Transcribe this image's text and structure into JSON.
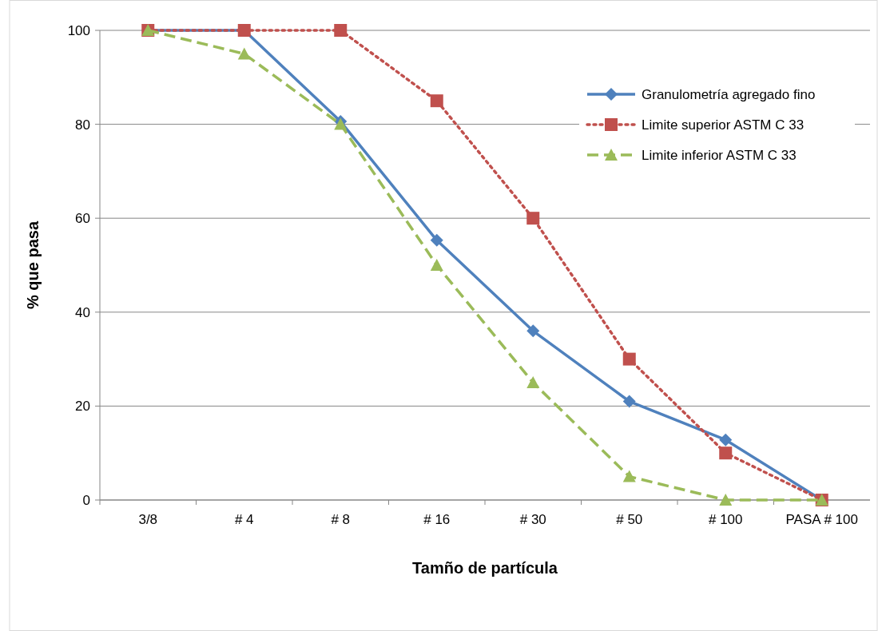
{
  "chart_data": {
    "type": "line",
    "xlabel": "Tamño de partícula",
    "ylabel": "% que pasa",
    "categories": [
      "3/8",
      "# 4",
      "# 8",
      "# 16",
      "# 30",
      "# 50",
      "# 100",
      "PASA # 100"
    ],
    "ylim": [
      0,
      100
    ],
    "yticks": [
      0,
      20,
      40,
      60,
      80,
      100
    ],
    "grid": "y",
    "legend": "top right",
    "series": [
      {
        "name": "Granulometría agregado fino",
        "color": "#4f81bd",
        "marker": "diamond",
        "line_style": "solid",
        "values": [
          100,
          100,
          80.6,
          55.3,
          36,
          21,
          12.8,
          0
        ]
      },
      {
        "name": "Limite superior ASTM C 33",
        "color": "#c0504d",
        "marker": "square",
        "line_style": "dotted",
        "values": [
          100,
          100,
          100,
          85,
          60,
          30,
          10,
          0
        ]
      },
      {
        "name": "Limite inferior ASTM C 33",
        "color": "#9bbb59",
        "marker": "triangle",
        "line_style": "dashed",
        "values": [
          100,
          95,
          80,
          50,
          25,
          5,
          0,
          0
        ]
      }
    ]
  }
}
